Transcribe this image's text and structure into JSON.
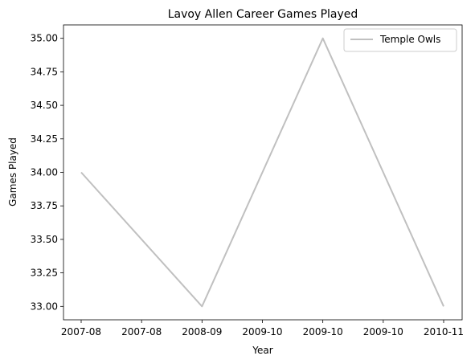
{
  "chart_data": {
    "type": "line",
    "title": "Lavoy Allen Career Games Played",
    "xlabel": "Year",
    "ylabel": "Games Played",
    "x": [
      "2007-08",
      "2008-09",
      "2009-10",
      "2010-11"
    ],
    "x_ticks": [
      "2007-08",
      "2007-08",
      "2008-09",
      "2009-10",
      "2009-10",
      "2009-10",
      "2010-11"
    ],
    "ylim": [
      32.9,
      35.1
    ],
    "y_ticks": [
      "33.00",
      "33.25",
      "33.50",
      "33.75",
      "34.00",
      "34.25",
      "34.50",
      "34.75",
      "35.00"
    ],
    "series": [
      {
        "name": "Temple Owls",
        "values": [
          34,
          33,
          35,
          33
        ],
        "color": "#c0c0c0"
      }
    ],
    "legend": "top-right",
    "grid": false
  }
}
